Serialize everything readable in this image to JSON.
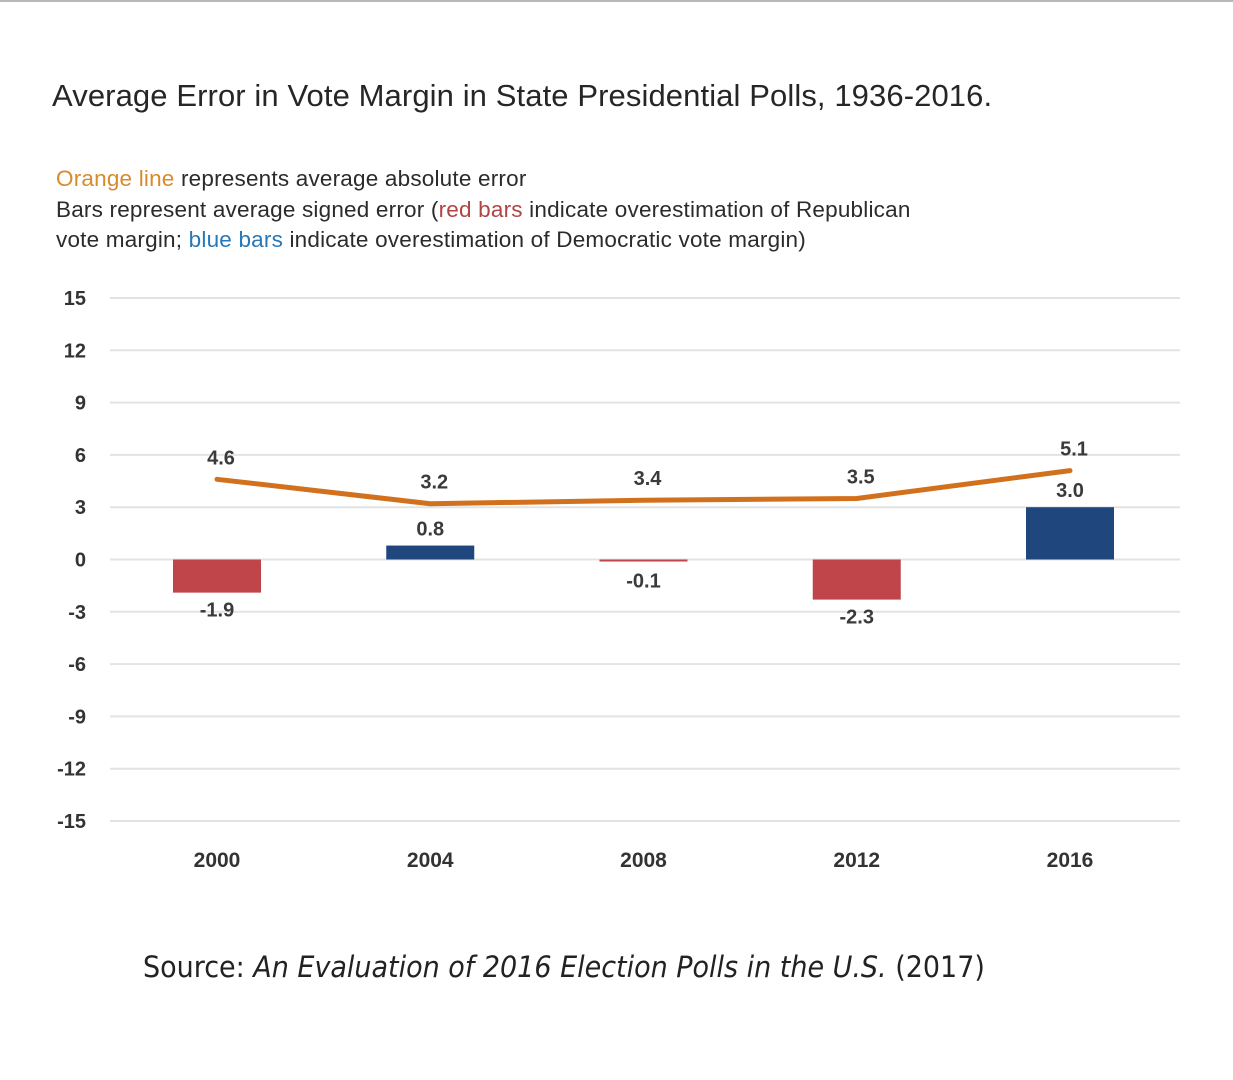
{
  "title": "Average Error in Vote Margin in State Presidential Polls, 1936-2016.",
  "description": {
    "line1_highlight": "Orange line",
    "line1_rest": " represents average absolute error",
    "line2_start": "Bars represent average signed error (",
    "line2_highlight": "red bars",
    "line2_rest": " indicate overestimation of Republican",
    "line3_start": "vote margin; ",
    "line3_highlight": "blue bars",
    "line3_rest": " indicate overestimation of Democratic vote margin)"
  },
  "source": {
    "prefix": "Source: ",
    "title": "An Evaluation of 2016 Election Polls in the U.S.",
    "suffix": " (2017)"
  },
  "colors": {
    "line": "#d2711d",
    "red_bar": "#c0454a",
    "blue_bar": "#1f467d",
    "gridline": "#e3e3e3",
    "legend_orange": "#d98a2b",
    "legend_red": "#b04545",
    "legend_blue": "#2878b8"
  },
  "chart_data": {
    "type": "bar",
    "title": "Average Error in Vote Margin in State Presidential Polls, 1936-2016.",
    "xlabel": "",
    "ylabel": "",
    "categories": [
      "2000",
      "2004",
      "2008",
      "2012",
      "2016"
    ],
    "ylim": [
      -15,
      15
    ],
    "yticks": [
      15,
      12,
      9,
      6,
      3,
      0,
      -3,
      -6,
      -9,
      -12,
      -15
    ],
    "grid": true,
    "series": [
      {
        "name": "Average signed error",
        "type": "bar",
        "values": [
          -1.9,
          0.8,
          -0.1,
          -2.3,
          3.0
        ],
        "labels": [
          "-1.9",
          "0.8",
          "-0.1",
          "-2.3",
          "3.0"
        ],
        "colors_rule": "negative = red (overestimation of Republican vote margin), positive = blue (overestimation of Democratic vote margin)"
      },
      {
        "name": "Average absolute error",
        "type": "line",
        "values": [
          4.6,
          3.2,
          3.4,
          3.5,
          5.1
        ],
        "labels": [
          "4.6",
          "3.2",
          "3.4",
          "3.5",
          "5.1"
        ]
      }
    ]
  }
}
